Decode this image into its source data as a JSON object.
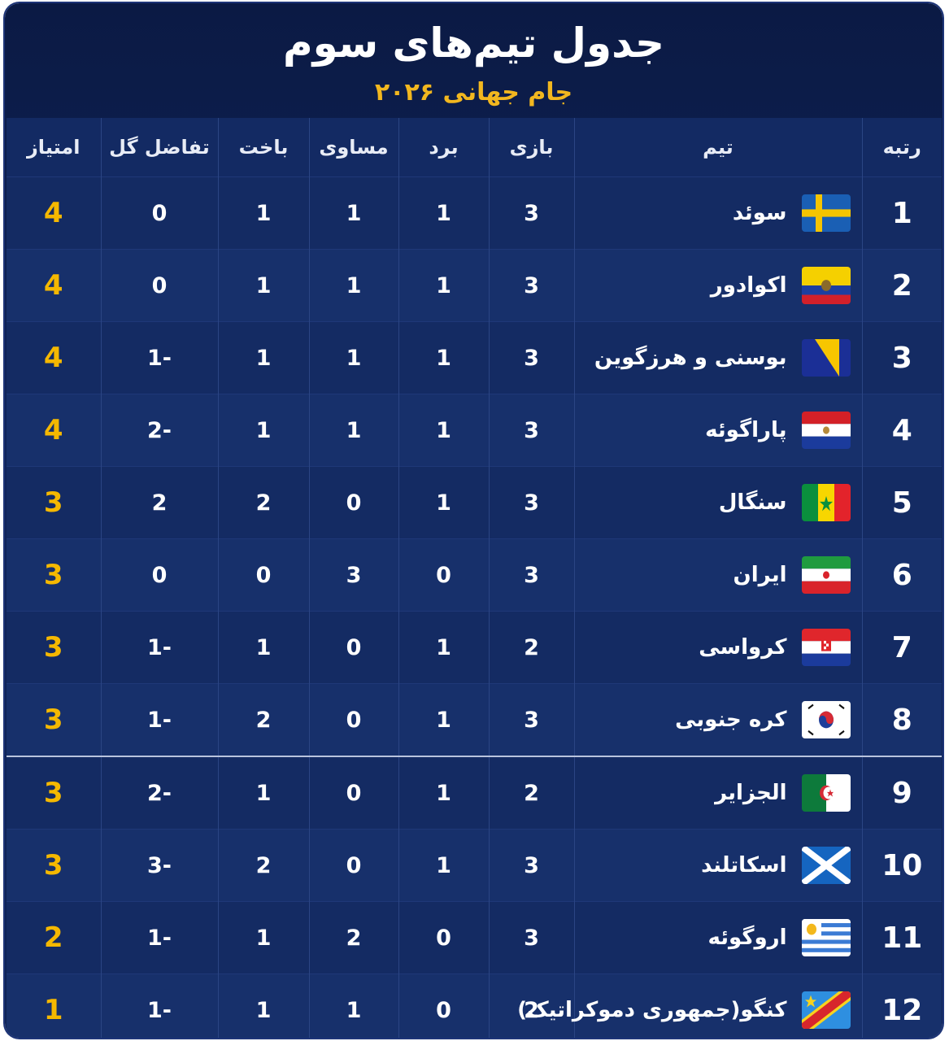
{
  "header": {
    "title": "جدول تیم‌های سوم",
    "subtitle": "جام جهانی ۲۰۲۶"
  },
  "table": {
    "columns": [
      "رتبه",
      "تیم",
      "بازی",
      "برد",
      "مساوی",
      "باخت",
      "تفاضل گل",
      "امتیاز"
    ],
    "rows": [
      [
        1,
        "سوئد",
        3,
        1,
        1,
        1,
        0,
        4
      ],
      [
        2,
        "اکوادور",
        3,
        1,
        1,
        1,
        0,
        4
      ],
      [
        3,
        "بوسنی و هرزگوین",
        3,
        1,
        1,
        1,
        -1,
        4
      ],
      [
        4,
        "پاراگوئه",
        3,
        1,
        1,
        1,
        -2,
        4
      ],
      [
        5,
        "سنگال",
        3,
        1,
        0,
        2,
        2,
        3
      ],
      [
        6,
        "ایران",
        3,
        0,
        3,
        0,
        0,
        3
      ],
      [
        7,
        "کرواسی",
        2,
        1,
        0,
        1,
        -1,
        3
      ],
      [
        8,
        "کره جنوبی",
        3,
        1,
        0,
        2,
        -1,
        3
      ],
      [
        9,
        "الجزایر",
        2,
        1,
        0,
        1,
        -2,
        3
      ],
      [
        10,
        "اسکاتلند",
        3,
        1,
        0,
        2,
        -3,
        3
      ],
      [
        11,
        "اروگوئه",
        3,
        0,
        2,
        1,
        -1,
        2
      ],
      [
        12,
        "کنگو(جمهوری دموکراتیک)",
        2,
        0,
        1,
        1,
        -1,
        1
      ]
    ]
  }
}
